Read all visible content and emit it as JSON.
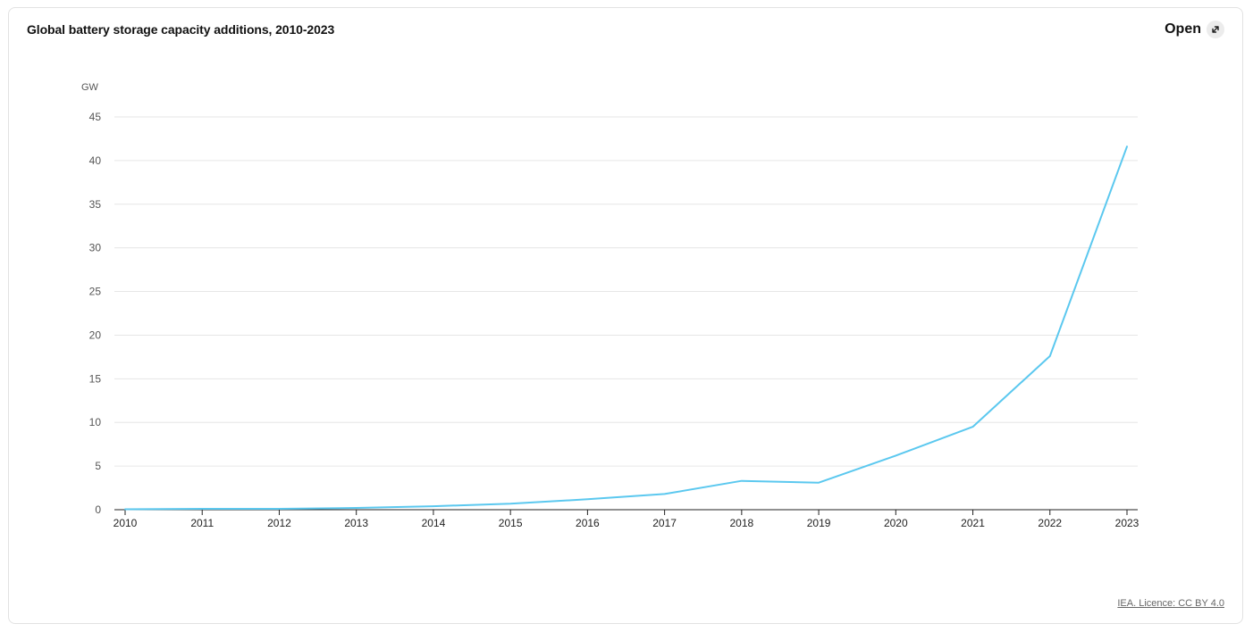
{
  "header": {
    "open_label": "Open",
    "open_icon": "expand-arrow-icon"
  },
  "footer": {
    "licence": "IEA. Licence: CC BY 4.0"
  },
  "colors": {
    "line": "#5bc8ef",
    "grid": "#e6e6e6",
    "axis": "#222222"
  },
  "chart_data": {
    "type": "line",
    "title": "Global battery storage capacity additions, 2010-2023",
    "unit_label": "GW",
    "xlabel": "",
    "ylabel": "",
    "x": [
      "2010",
      "2011",
      "2012",
      "2013",
      "2014",
      "2015",
      "2016",
      "2017",
      "2018",
      "2019",
      "2020",
      "2021",
      "2022",
      "2023"
    ],
    "series": [
      {
        "values": [
          0.05,
          0.1,
          0.1,
          0.2,
          0.4,
          0.7,
          1.2,
          1.8,
          3.3,
          3.1,
          6.2,
          9.5,
          17.6,
          41.6
        ]
      }
    ],
    "yticks": [
      0,
      5,
      10,
      15,
      20,
      25,
      30,
      35,
      40,
      45
    ],
    "ylim": [
      0,
      45
    ],
    "grid": true,
    "legend": "none"
  }
}
